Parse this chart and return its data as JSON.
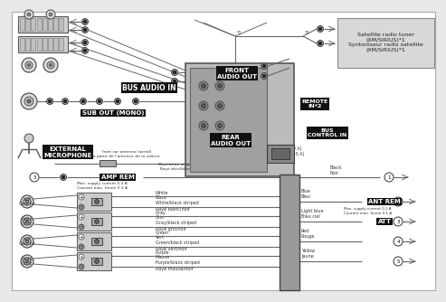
{
  "bg_color": "#e8e8e8",
  "diagram_bg": "#ffffff",
  "labels": {
    "bus_audio_in": "BUS AUDIO IN",
    "front_audio_out": "FRONT\nAUDIO OUT",
    "rear_audio_out": "REAR\nAUDIO OUT",
    "sub_out": "SUB OUT (MONO)",
    "remote_in": "REMOTE\nIN*2",
    "bus_control_in": "BUS\nCONTROL IN",
    "external_mic": "EXTERNAL\nMICROPHONE",
    "amp_rem": "AMP REM",
    "ant_rem": "ANT REM",
    "att": "ATT",
    "fuse": "Fuse (10 A)\nFusible (10 A)",
    "satellite": "Satellite radio tuner\n(XM/SIRIUS)*1\nSyntoniseur radio satellite\n(XM/SIRIUS)*1",
    "blue_white": "Blue/white striped\nRayé bleu/blanc",
    "amp_rem_note": "Max. supply current 0.3 A\nCourant max. fourni 0.3 A",
    "ant_rem_note": "Max. supply current 0.1 A\nCourant max. fourni 0.1 A",
    "antenna_note": "from car antenna (aerial)\nà partir de l'antenne de la voiture",
    "black_noir": "Black\nNoir",
    "blue_bleu": "Blue\nBleu",
    "light_blue": "Light blue\nBleu ciel",
    "red_rouge": "Red\nRouge",
    "yellow_jaune": "Yellow\nJaune",
    "spk_rows": [
      {
        "side": "Left\nGauche",
        "w1": "White\nBlanc",
        "w2": "White/black striped\nRayé blanc/noir",
        "right": "Blue\nBleu",
        "rlabel": "ANT REM",
        "rnote": "Max. supply current 0.1 A\nCourant max. fourni 0.1 A",
        "num": "2"
      },
      {
        "side": "Right\nDroit",
        "w1": "Gray\nGris",
        "w2": "Gray/black striped\nRayé gris/noir",
        "right": "Light blue\nBleu ciel",
        "rlabel": "ATT",
        "rnote": "",
        "num": "3"
      },
      {
        "side": "Left\nGauche",
        "w1": "Green\nVert",
        "w2": "Green/black striped\nRayé vert/noir",
        "right": "Red\nRouge",
        "rlabel": "",
        "rnote": "",
        "num": "4"
      },
      {
        "side": "Right\nDroit",
        "w1": "Purple\nMauve",
        "w2": "Purple/black striped\nRayé mauve/noir",
        "right": "Yellow\nJaune",
        "rlabel": "",
        "rnote": "",
        "num": "5"
      }
    ]
  },
  "colors": {
    "wire": "#666666",
    "wire_dark": "#333333",
    "label_bg": "#111111",
    "label_fg": "#ffffff",
    "unit_dark": "#888888",
    "unit_mid": "#aaaaaa",
    "unit_light": "#cccccc",
    "sat_bg": "#d0d0d0",
    "connector": "#555555",
    "white": "#ffffff",
    "border": "#444444"
  }
}
